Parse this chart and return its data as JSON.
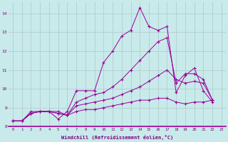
{
  "background_color": "#c8eaea",
  "line_color": "#990099",
  "grid_color": "#b0c8c8",
  "xlabel": "Windchill (Refroidissement éolien,°C)",
  "xlabel_color": "#800080",
  "tick_color": "#800080",
  "xlim": [
    -0.5,
    23.5
  ],
  "ylim": [
    8.0,
    14.6
  ],
  "yticks": [
    8,
    9,
    10,
    11,
    12,
    13,
    14
  ],
  "xticks": [
    0,
    1,
    2,
    3,
    4,
    5,
    6,
    7,
    8,
    9,
    10,
    11,
    12,
    13,
    14,
    15,
    16,
    17,
    18,
    19,
    20,
    21,
    22,
    23
  ],
  "lines": [
    {
      "x": [
        0,
        1,
        2,
        3,
        4,
        5,
        6,
        7,
        8,
        9,
        10,
        11,
        12,
        13,
        14,
        15,
        16,
        17,
        18,
        19,
        20,
        21,
        22
      ],
      "y": [
        8.3,
        8.3,
        8.8,
        8.8,
        8.8,
        8.4,
        8.8,
        9.9,
        9.9,
        9.9,
        11.4,
        12.0,
        12.8,
        13.1,
        14.3,
        13.3,
        13.1,
        13.3,
        9.8,
        10.7,
        11.1,
        9.9,
        9.3
      ]
    },
    {
      "x": [
        0,
        1,
        2,
        3,
        4,
        5,
        6,
        7,
        8,
        9,
        10,
        11,
        12,
        13,
        14,
        15,
        16,
        17,
        18,
        19,
        20,
        21,
        22
      ],
      "y": [
        8.3,
        8.3,
        8.7,
        8.8,
        8.8,
        8.8,
        8.6,
        9.3,
        9.5,
        9.7,
        9.8,
        10.1,
        10.5,
        11.0,
        11.5,
        12.0,
        12.5,
        12.7,
        10.3,
        10.8,
        10.8,
        10.5,
        9.4
      ]
    },
    {
      "x": [
        0,
        1,
        2,
        3,
        4,
        5,
        6,
        7,
        8,
        9,
        10,
        11,
        12,
        13,
        14,
        15,
        16,
        17,
        18,
        19,
        20,
        21,
        22
      ],
      "y": [
        8.3,
        8.3,
        8.7,
        8.8,
        8.8,
        8.7,
        8.6,
        9.1,
        9.2,
        9.3,
        9.4,
        9.5,
        9.7,
        9.9,
        10.1,
        10.4,
        10.7,
        11.0,
        10.5,
        10.3,
        10.4,
        10.3,
        9.4
      ]
    },
    {
      "x": [
        0,
        1,
        2,
        3,
        4,
        5,
        6,
        7,
        8,
        9,
        10,
        11,
        12,
        13,
        14,
        15,
        16,
        17,
        18,
        19,
        20,
        21,
        22
      ],
      "y": [
        8.3,
        8.3,
        8.7,
        8.8,
        8.8,
        8.7,
        8.6,
        8.8,
        8.9,
        8.9,
        9.0,
        9.1,
        9.2,
        9.3,
        9.4,
        9.4,
        9.5,
        9.5,
        9.3,
        9.2,
        9.3,
        9.3,
        9.4
      ]
    }
  ]
}
